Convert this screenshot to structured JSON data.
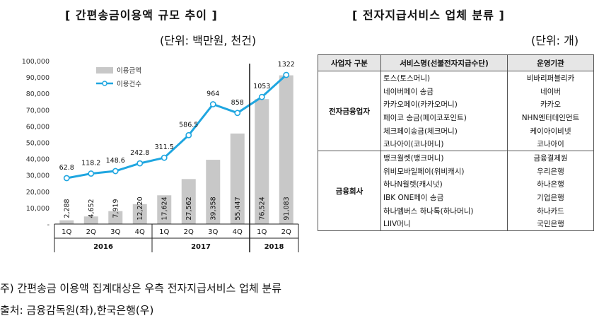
{
  "left_title": "[ 간편송금이용액 규모 추이 ]",
  "left_unit": "(단위: 백만원, 천건)",
  "right_title": "[ 전자지급서비스 업체 분류 ]",
  "right_unit": "(단위: 개)",
  "chart_data": {
    "type": "bar+line",
    "categories": [
      "1Q",
      "2Q",
      "3Q",
      "4Q",
      "1Q",
      "2Q",
      "3Q",
      "4Q",
      "1Q",
      "2Q"
    ],
    "year_groups": [
      {
        "label": "2016",
        "count": 4
      },
      {
        "label": "2017",
        "count": 4
      },
      {
        "label": "2018",
        "count": 2
      }
    ],
    "series": [
      {
        "name": "이용금액",
        "type": "bar",
        "color": "#c8c8c8",
        "values": [
          2288,
          4652,
          7919,
          12220,
          17624,
          27562,
          39358,
          55447,
          76524,
          91083
        ],
        "labels": [
          "2,288",
          "4,652",
          "7,919",
          "12,220",
          "17,624",
          "27,562",
          "39,358",
          "55,447",
          "76,524",
          "91,083"
        ]
      },
      {
        "name": "이용건수",
        "type": "line",
        "color": "#1fa6e0",
        "values": [
          62.8,
          118.2,
          148.6,
          242.8,
          311.5,
          586.5,
          964,
          858,
          1053,
          1322
        ],
        "labels": [
          "62.8",
          "118.2",
          "148.6",
          "242.8",
          "311.5",
          "586.5",
          "964",
          "858",
          "1053",
          "1322"
        ]
      }
    ],
    "ylim": [
      0,
      100000
    ],
    "yticks": [
      "100,000",
      "90,000",
      "80,000",
      "70,000",
      "60,000",
      "50,000",
      "40,000",
      "30,000",
      "20,000",
      "10,000",
      "-"
    ],
    "legend_position": "top-left",
    "grid": false
  },
  "table": {
    "headers": [
      "사업자 구분",
      "서비스명(선불전자지급수단)",
      "운영기관"
    ],
    "groups": [
      {
        "name": "전자금융업자",
        "rows": [
          {
            "service": "토스(토스머니)",
            "org": "비바리퍼블리카"
          },
          {
            "service": "네이버페이 송금",
            "org": "네이버"
          },
          {
            "service": "카카오페이(카카오머니)",
            "org": "카카오"
          },
          {
            "service": "페이코 송금(페이코포인트)",
            "org": "NHN엔터테인먼트"
          },
          {
            "service": "체크페이송금(체크머니)",
            "org": "케이아이비넷"
          },
          {
            "service": "코나아이(코나머니)",
            "org": "코나아이"
          }
        ]
      },
      {
        "name": "금융회사",
        "rows": [
          {
            "service": "뱅크월렛(뱅크머니)",
            "org": "금융결제원"
          },
          {
            "service": "위비모바일페이(위비캐시)",
            "org": "우리은행"
          },
          {
            "service": "하나N월렛(캐시넛)",
            "org": "하나은행"
          },
          {
            "service": "IBK ONE페이 송금",
            "org": "기업은행"
          },
          {
            "service": "하나멤버스 하나톡(하나머니)",
            "org": "하나카드"
          },
          {
            "service": "LIIV머니",
            "org": "국민은행"
          }
        ]
      }
    ]
  },
  "notes": {
    "note1": "주) 간편송금 이용액 집계대상은 우측 전자지급서비스 업체 분류",
    "note2": "출처: 금융감독원(좌),한국은행(우)"
  }
}
